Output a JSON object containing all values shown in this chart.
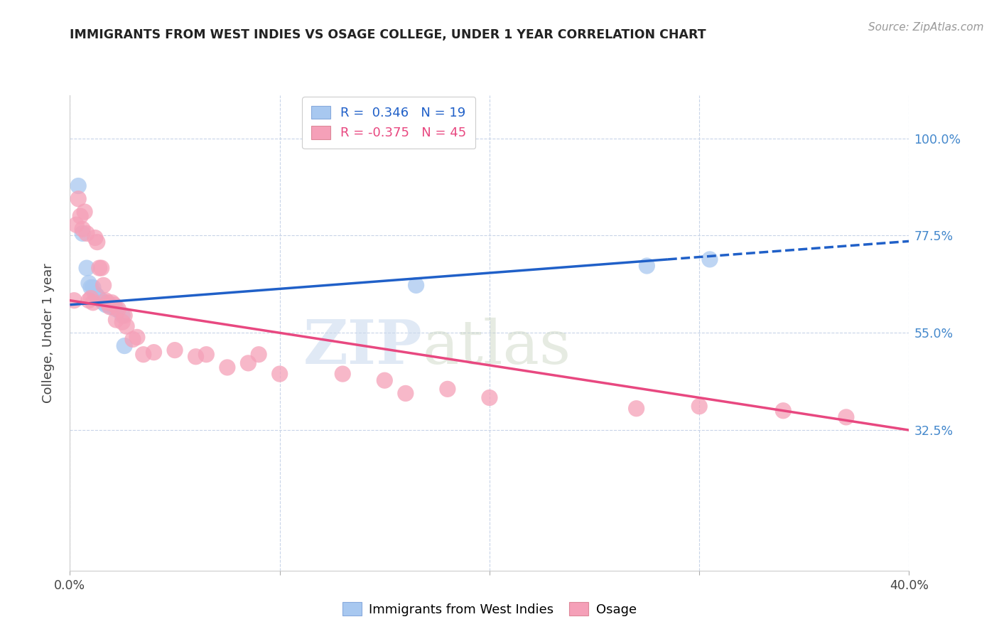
{
  "title": "IMMIGRANTS FROM WEST INDIES VS OSAGE COLLEGE, UNDER 1 YEAR CORRELATION CHART",
  "source_text": "Source: ZipAtlas.com",
  "xlabel_blue": "Immigrants from West Indies",
  "xlabel_pink": "Osage",
  "ylabel": "College, Under 1 year",
  "watermark_zip": "ZIP",
  "watermark_atlas": "atlas",
  "xlim": [
    0.0,
    0.4
  ],
  "ylim": [
    0.0,
    1.1
  ],
  "yticks": [
    0.325,
    0.55,
    0.775,
    1.0
  ],
  "ytick_labels": [
    "32.5%",
    "55.0%",
    "77.5%",
    "100.0%"
  ],
  "xticks": [
    0.0,
    0.1,
    0.2,
    0.3,
    0.4
  ],
  "xtick_labels": [
    "0.0%",
    "",
    "",
    "",
    "40.0%"
  ],
  "legend_blue_R": "0.346",
  "legend_blue_N": "19",
  "legend_pink_R": "-0.375",
  "legend_pink_N": "45",
  "blue_color": "#a8c8f0",
  "pink_color": "#f5a0b8",
  "trend_blue": "#2060c8",
  "trend_pink": "#e84880",
  "grid_color": "#c8d4e8",
  "blue_scatter_x": [
    0.004,
    0.006,
    0.008,
    0.009,
    0.01,
    0.011,
    0.012,
    0.013,
    0.015,
    0.016,
    0.017,
    0.018,
    0.02,
    0.022,
    0.025,
    0.026,
    0.165,
    0.275,
    0.305
  ],
  "blue_scatter_y": [
    0.89,
    0.78,
    0.7,
    0.665,
    0.655,
    0.655,
    0.64,
    0.635,
    0.625,
    0.62,
    0.615,
    0.615,
    0.61,
    0.605,
    0.59,
    0.52,
    0.66,
    0.705,
    0.72
  ],
  "pink_scatter_x": [
    0.002,
    0.003,
    0.004,
    0.005,
    0.006,
    0.007,
    0.008,
    0.009,
    0.01,
    0.011,
    0.012,
    0.013,
    0.014,
    0.015,
    0.016,
    0.017,
    0.018,
    0.019,
    0.02,
    0.021,
    0.022,
    0.023,
    0.025,
    0.026,
    0.027,
    0.03,
    0.032,
    0.035,
    0.04,
    0.05,
    0.06,
    0.065,
    0.075,
    0.085,
    0.09,
    0.1,
    0.13,
    0.15,
    0.16,
    0.18,
    0.2,
    0.27,
    0.3,
    0.34,
    0.37
  ],
  "pink_scatter_y": [
    0.625,
    0.8,
    0.86,
    0.82,
    0.79,
    0.83,
    0.78,
    0.625,
    0.63,
    0.62,
    0.77,
    0.76,
    0.7,
    0.7,
    0.66,
    0.625,
    0.62,
    0.61,
    0.62,
    0.615,
    0.58,
    0.605,
    0.575,
    0.59,
    0.565,
    0.535,
    0.54,
    0.5,
    0.505,
    0.51,
    0.495,
    0.5,
    0.47,
    0.48,
    0.5,
    0.455,
    0.455,
    0.44,
    0.41,
    0.42,
    0.4,
    0.375,
    0.38,
    0.37,
    0.355
  ],
  "blue_trend_x0": 0.0,
  "blue_trend_x1": 0.285,
  "blue_trend_y0": 0.615,
  "blue_trend_y1": 0.72,
  "blue_trend_dash_x0": 0.285,
  "blue_trend_dash_x1": 0.4,
  "blue_trend_dash_y0": 0.72,
  "blue_trend_dash_y1": 0.762,
  "pink_trend_x0": 0.0,
  "pink_trend_x1": 0.4,
  "pink_trend_y0": 0.625,
  "pink_trend_y1": 0.325
}
